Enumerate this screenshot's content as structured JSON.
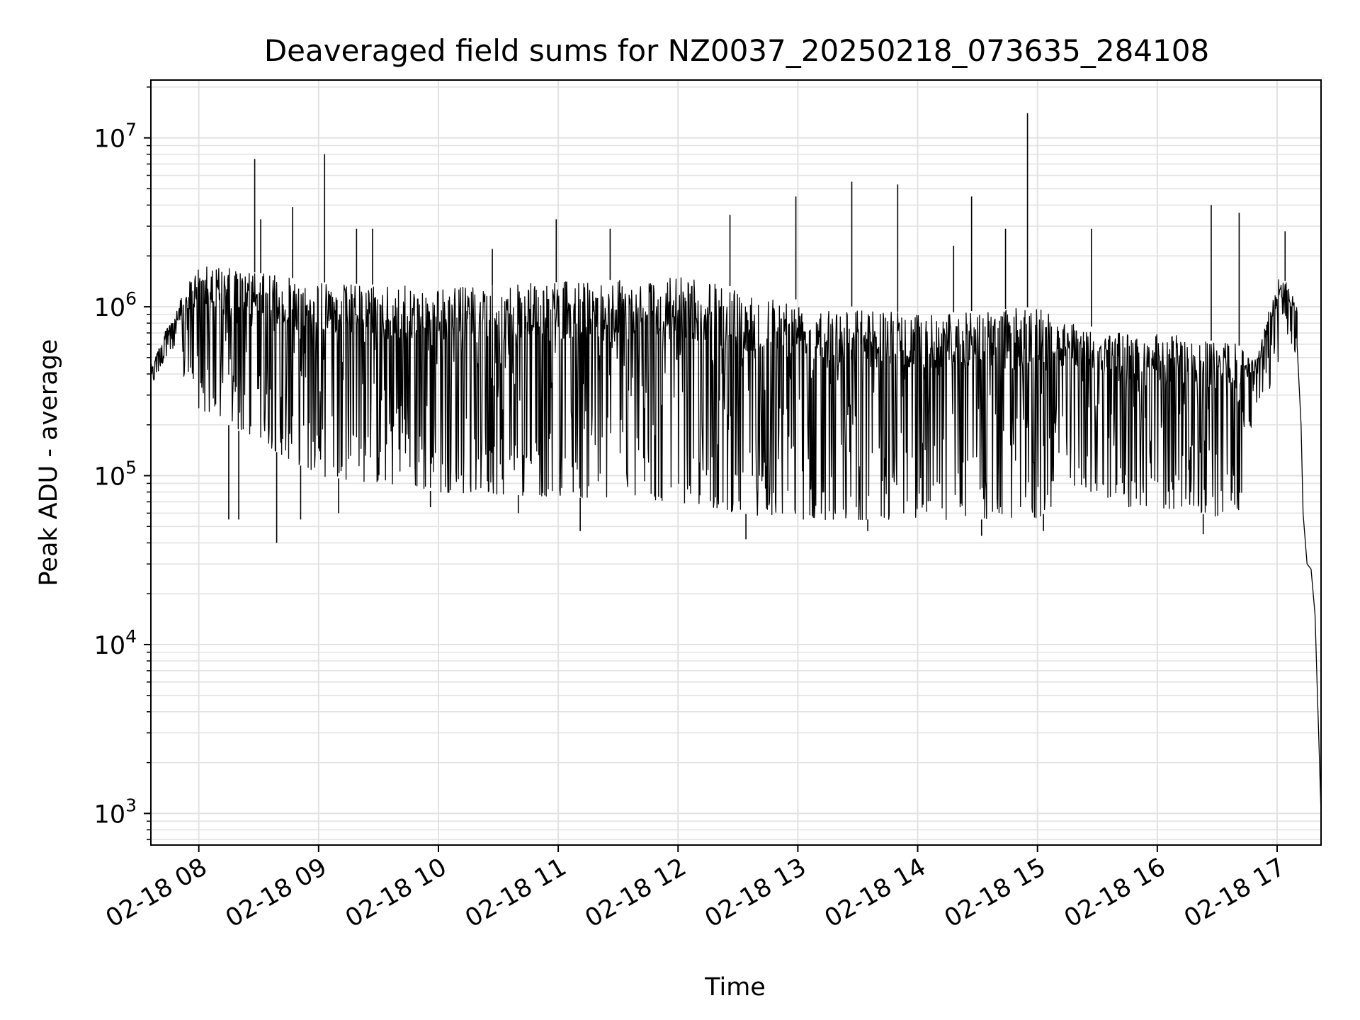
{
  "chart_data": {
    "type": "line",
    "title": "Deaveraged field sums for NZ0037_20250218_073635_284108",
    "xlabel": "Time",
    "ylabel": "Peak ADU - average",
    "y_scale": "log",
    "ylim": [
      650,
      22000000
    ],
    "xlim": [
      "2025-02-18 07:36",
      "2025-02-18 17:22"
    ],
    "grid": true,
    "line_color": "#000000",
    "grid_color": "#e2e2e2",
    "x_ticks": [
      {
        "time": "2025-02-18 08:00",
        "label": "02-18 08"
      },
      {
        "time": "2025-02-18 09:00",
        "label": "02-18 09"
      },
      {
        "time": "2025-02-18 10:00",
        "label": "02-18 10"
      },
      {
        "time": "2025-02-18 11:00",
        "label": "02-18 11"
      },
      {
        "time": "2025-02-18 12:00",
        "label": "02-18 12"
      },
      {
        "time": "2025-02-18 13:00",
        "label": "02-18 13"
      },
      {
        "time": "2025-02-18 14:00",
        "label": "02-18 14"
      },
      {
        "time": "2025-02-18 15:00",
        "label": "02-18 15"
      },
      {
        "time": "2025-02-18 16:00",
        "label": "02-18 16"
      },
      {
        "time": "2025-02-18 17:00",
        "label": "02-18 17"
      }
    ],
    "y_ticks": [
      {
        "value": 1000,
        "base": "10",
        "exp": "3"
      },
      {
        "value": 10000,
        "base": "10",
        "exp": "4"
      },
      {
        "value": 100000,
        "base": "10",
        "exp": "5"
      },
      {
        "value": 1000000,
        "base": "10",
        "exp": "6"
      },
      {
        "value": 10000000,
        "base": "10",
        "exp": "7"
      }
    ],
    "series": [
      {
        "name": "",
        "band_envelope": [
          {
            "time": "2025-02-18 07:36",
            "high": 450000,
            "low": 330000
          },
          {
            "time": "2025-02-18 07:45",
            "high": 800000,
            "low": 550000
          },
          {
            "time": "2025-02-18 08:00",
            "high": 1800000,
            "low": 250000
          },
          {
            "time": "2025-02-18 09:00",
            "high": 1400000,
            "low": 100000
          },
          {
            "time": "2025-02-18 10:00",
            "high": 1300000,
            "low": 80000
          },
          {
            "time": "2025-02-18 11:00",
            "high": 1400000,
            "low": 75000
          },
          {
            "time": "2025-02-18 12:00",
            "high": 1500000,
            "low": 70000
          },
          {
            "time": "2025-02-18 12:30",
            "high": 1300000,
            "low": 60000
          },
          {
            "time": "2025-02-18 13:00",
            "high": 1100000,
            "low": 55000
          },
          {
            "time": "2025-02-18 14:00",
            "high": 900000,
            "low": 55000
          },
          {
            "time": "2025-02-18 15:00",
            "high": 1000000,
            "low": 55000
          },
          {
            "time": "2025-02-18 15:20",
            "high": 800000,
            "low": 90000
          },
          {
            "time": "2025-02-18 15:40",
            "high": 700000,
            "low": 65000
          },
          {
            "time": "2025-02-18 16:00",
            "high": 700000,
            "low": 65000
          },
          {
            "time": "2025-02-18 16:40",
            "high": 600000,
            "low": 55000
          },
          {
            "time": "2025-02-18 16:50",
            "high": 500000,
            "low": 280000
          },
          {
            "time": "2025-02-18 17:00",
            "high": 1500000,
            "low": 350000
          },
          {
            "time": "2025-02-18 17:05",
            "high": 1400000,
            "low": 700000
          },
          {
            "time": "2025-02-18 17:10",
            "high": 1000000,
            "low": 500000
          }
        ],
        "tail": [
          {
            "time": "2025-02-18 17:10",
            "value": 600000
          },
          {
            "time": "2025-02-18 17:12",
            "value": 200000
          },
          {
            "time": "2025-02-18 17:13",
            "value": 60000
          },
          {
            "time": "2025-02-18 17:15",
            "value": 30000
          },
          {
            "time": "2025-02-18 17:17",
            "value": 28000
          },
          {
            "time": "2025-02-18 17:19",
            "value": 15000
          },
          {
            "time": "2025-02-18 17:20",
            "value": 6000
          },
          {
            "time": "2025-02-18 17:21",
            "value": 2500
          },
          {
            "time": "2025-02-18 17:22",
            "value": 1000
          }
        ],
        "spikes": [
          {
            "time": "2025-02-18 08:28",
            "value": 7500000
          },
          {
            "time": "2025-02-18 08:31",
            "value": 3300000
          },
          {
            "time": "2025-02-18 08:47",
            "value": 3900000
          },
          {
            "time": "2025-02-18 09:03",
            "value": 8000000
          },
          {
            "time": "2025-02-18 09:19",
            "value": 2900000
          },
          {
            "time": "2025-02-18 09:27",
            "value": 2900000
          },
          {
            "time": "2025-02-18 10:27",
            "value": 2200000
          },
          {
            "time": "2025-02-18 10:59",
            "value": 3300000
          },
          {
            "time": "2025-02-18 11:26",
            "value": 2900000
          },
          {
            "time": "2025-02-18 12:26",
            "value": 3500000
          },
          {
            "time": "2025-02-18 12:59",
            "value": 4500000
          },
          {
            "time": "2025-02-18 13:27",
            "value": 5500000
          },
          {
            "time": "2025-02-18 13:50",
            "value": 5300000
          },
          {
            "time": "2025-02-18 14:18",
            "value": 2300000
          },
          {
            "time": "2025-02-18 14:27",
            "value": 4500000
          },
          {
            "time": "2025-02-18 14:44",
            "value": 2900000
          },
          {
            "time": "2025-02-18 14:55",
            "value": 14000000
          },
          {
            "time": "2025-02-18 15:27",
            "value": 2900000
          },
          {
            "time": "2025-02-18 16:27",
            "value": 4000000
          },
          {
            "time": "2025-02-18 16:41",
            "value": 3600000
          },
          {
            "time": "2025-02-18 17:04",
            "value": 2800000
          }
        ],
        "dips": [
          {
            "time": "2025-02-18 08:15",
            "value": 55000
          },
          {
            "time": "2025-02-18 08:20",
            "value": 55000
          },
          {
            "time": "2025-02-18 08:39",
            "value": 40000
          },
          {
            "time": "2025-02-18 08:51",
            "value": 55000
          },
          {
            "time": "2025-02-18 09:10",
            "value": 60000
          },
          {
            "time": "2025-02-18 09:56",
            "value": 65000
          },
          {
            "time": "2025-02-18 10:40",
            "value": 60000
          },
          {
            "time": "2025-02-18 11:11",
            "value": 47000
          },
          {
            "time": "2025-02-18 12:34",
            "value": 42000
          },
          {
            "time": "2025-02-18 13:35",
            "value": 47000
          },
          {
            "time": "2025-02-18 14:32",
            "value": 44000
          },
          {
            "time": "2025-02-18 15:03",
            "value": 47000
          },
          {
            "time": "2025-02-18 16:23",
            "value": 45000
          }
        ]
      }
    ]
  }
}
